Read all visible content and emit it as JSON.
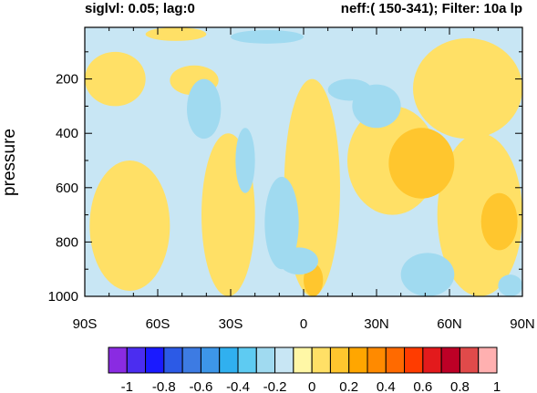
{
  "chart_data": {
    "type": "heatmap",
    "title_left": "siglvl: 0.05; lag:0",
    "title_right": "neff:( 150-341); Filter: 10a lp",
    "ylabel": "pressure",
    "xlabel": "",
    "x_ticks": [
      {
        "value": -90,
        "label": "90S"
      },
      {
        "value": -60,
        "label": "60S"
      },
      {
        "value": -30,
        "label": "30S"
      },
      {
        "value": 0,
        "label": "0"
      },
      {
        "value": 30,
        "label": "30N"
      },
      {
        "value": 60,
        "label": "60N"
      },
      {
        "value": 90,
        "label": "90N"
      }
    ],
    "y_ticks": [
      {
        "value": 200,
        "label": "200"
      },
      {
        "value": 400,
        "label": "400"
      },
      {
        "value": 600,
        "label": "600"
      },
      {
        "value": 800,
        "label": "800"
      },
      {
        "value": 1000,
        "label": "1000"
      }
    ],
    "xlim": [
      -90,
      90
    ],
    "ylim": [
      1000,
      10
    ],
    "y_axis_inverted": true,
    "grid": false,
    "colorbar": {
      "placement": "bottom",
      "labels": [
        "-1",
        "-0.8",
        "-0.6",
        "-0.4",
        "-0.2",
        "0",
        "0.2",
        "0.4",
        "0.6",
        "0.8",
        "1"
      ],
      "colors": [
        "#8a2be2",
        "#4b2df0",
        "#1a1aff",
        "#2c5ae6",
        "#3d7be3",
        "#3d96e8",
        "#30b0ef",
        "#5ecbf2",
        "#a0daf0",
        "#c8e6f4",
        "#fff7a6",
        "#ffe066",
        "#ffc62e",
        "#ffa600",
        "#ff8a00",
        "#ff6a00",
        "#ff3c00",
        "#e31a1c",
        "#bd0026",
        "#e04a4a",
        "#ffb0b0"
      ]
    },
    "regions": [
      {
        "value": -0.1,
        "x": [
          -90,
          90
        ],
        "y": [
          10,
          1000
        ]
      },
      {
        "value": 0.1,
        "x": [
          -90,
          -65
        ],
        "y": [
          100,
          300
        ]
      },
      {
        "value": 0.1,
        "x": [
          -55,
          -35
        ],
        "y": [
          150,
          260
        ]
      },
      {
        "value": 0.1,
        "x": [
          -42,
          -20
        ],
        "y": [
          400,
          1000
        ]
      },
      {
        "value": 0.1,
        "x": [
          -88,
          -55
        ],
        "y": [
          500,
          980
        ]
      },
      {
        "value": 0.1,
        "x": [
          -8,
          15
        ],
        "y": [
          200,
          1000
        ]
      },
      {
        "value": 0.1,
        "x": [
          18,
          55
        ],
        "y": [
          300,
          700
        ]
      },
      {
        "value": 0.1,
        "x": [
          45,
          90
        ],
        "y": [
          50,
          420
        ]
      },
      {
        "value": 0.1,
        "x": [
          55,
          90
        ],
        "y": [
          400,
          1000
        ]
      },
      {
        "value": 0.1,
        "x": [
          -65,
          -40
        ],
        "y": [
          10,
          60
        ]
      },
      {
        "value": 0.2,
        "x": [
          35,
          62
        ],
        "y": [
          380,
          640
        ]
      },
      {
        "value": 0.2,
        "x": [
          73,
          88
        ],
        "y": [
          620,
          830
        ]
      },
      {
        "value": 0.2,
        "x": [
          0,
          8
        ],
        "y": [
          880,
          1000
        ]
      },
      {
        "value": 0.3,
        "x": [
          46,
          52
        ],
        "y": [
          480,
          530
        ]
      },
      {
        "value": -0.2,
        "x": [
          -48,
          -34
        ],
        "y": [
          200,
          420
        ]
      },
      {
        "value": -0.2,
        "x": [
          -16,
          -2
        ],
        "y": [
          560,
          900
        ]
      },
      {
        "value": -0.2,
        "x": [
          -28,
          -20
        ],
        "y": [
          380,
          620
        ]
      },
      {
        "value": -0.2,
        "x": [
          -30,
          0
        ],
        "y": [
          20,
          70
        ]
      },
      {
        "value": -0.2,
        "x": [
          20,
          40
        ],
        "y": [
          220,
          380
        ]
      },
      {
        "value": -0.2,
        "x": [
          40,
          62
        ],
        "y": [
          840,
          1000
        ]
      },
      {
        "value": -0.2,
        "x": [
          80,
          90
        ],
        "y": [
          920,
          1000
        ]
      },
      {
        "value": -0.2,
        "x": [
          10,
          28
        ],
        "y": [
          200,
          280
        ]
      },
      {
        "value": -0.2,
        "x": [
          -10,
          6
        ],
        "y": [
          820,
          920
        ]
      }
    ]
  }
}
